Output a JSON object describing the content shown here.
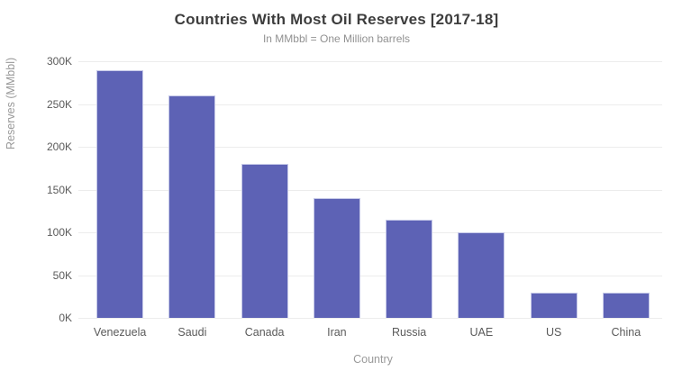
{
  "chart_data": {
    "type": "bar",
    "title": "Countries With Most Oil Reserves [2017-18]",
    "subtitle": "In MMbbl = One Million barrels",
    "xlabel": "Country",
    "ylabel": "Reserves (MMbbl)",
    "categories": [
      "Venezuela",
      "Saudi",
      "Canada",
      "Iran",
      "Russia",
      "UAE",
      "US",
      "China"
    ],
    "values": [
      290000,
      260000,
      180000,
      140000,
      115000,
      100000,
      30000,
      30000
    ],
    "unit": "MMbbl",
    "ylim": [
      0,
      300000
    ],
    "yticks": [
      0,
      50000,
      100000,
      150000,
      200000,
      250000,
      300000
    ],
    "ytick_labels": [
      "0K",
      "50K",
      "100K",
      "150K",
      "200K",
      "250K",
      "300K"
    ],
    "grid": "horizontal",
    "legend": "none",
    "bar_color": "#5d62b5",
    "bar_border_color": "#c6c9e8",
    "grid_color": "#ececec",
    "background": "#ffffff",
    "title_color": "#3d3d3d",
    "subtitle_color": "#919191",
    "tick_label_color": "#5a5a5a",
    "axis_title_color": "#9a9a9a"
  }
}
